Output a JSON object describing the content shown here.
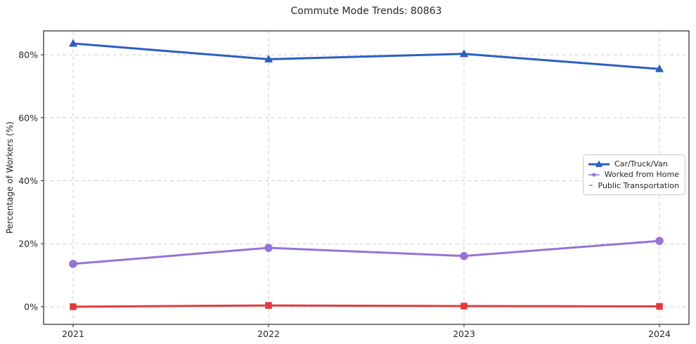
{
  "chart_data": {
    "type": "line",
    "title": "Commute Mode Trends: 80863",
    "xlabel": "",
    "ylabel": "Percentage of Workers (%)",
    "categories": [
      "2021",
      "2022",
      "2023",
      "2024"
    ],
    "series": [
      {
        "name": "Car/Truck/Van",
        "color": "#2b5fc0",
        "marker": "triangle",
        "values": [
          83.6,
          78.6,
          80.3,
          75.5
        ]
      },
      {
        "name": "Worked from Home",
        "color": "#9673d4",
        "marker": "circle",
        "values": [
          13.6,
          18.7,
          16.1,
          20.9
        ]
      },
      {
        "name": "Public Transportation",
        "color": "#e03c3e",
        "marker": "square",
        "values": [
          0.0,
          0.4,
          0.2,
          0.1
        ]
      }
    ],
    "yticks": [
      {
        "value": 0,
        "label": "0%"
      },
      {
        "value": 20,
        "label": "20%"
      },
      {
        "value": 40,
        "label": "40%"
      },
      {
        "value": 60,
        "label": "60%"
      },
      {
        "value": 80,
        "label": "80%"
      }
    ],
    "ylim": [
      -5.6,
      87.6
    ],
    "grid": true,
    "grid_style": "dashed",
    "legend_position": "right-center",
    "colors": {
      "grid": "#cfcfcf",
      "spine": "#262626",
      "text": "#262626",
      "background": "#ffffff"
    }
  }
}
